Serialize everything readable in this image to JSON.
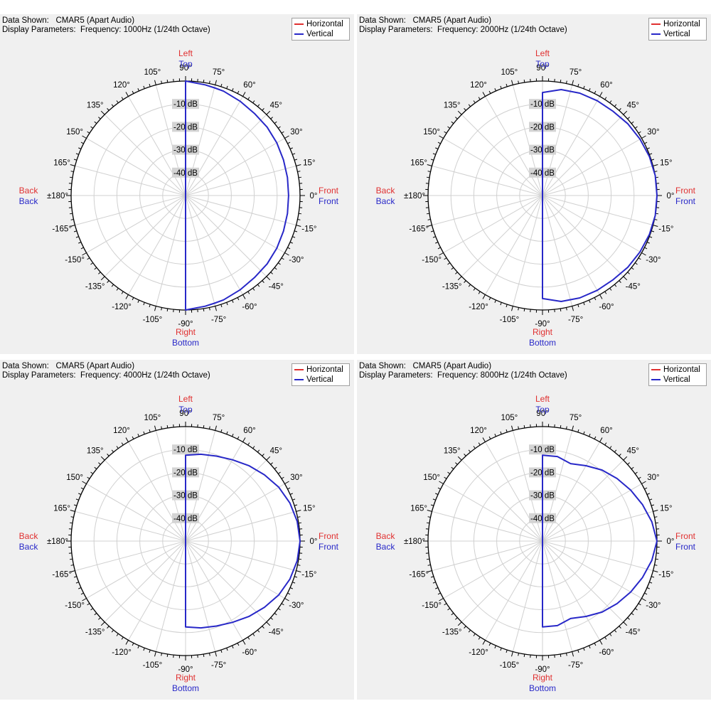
{
  "colors": {
    "horizontal": "#e03030",
    "vertical": "#2828c8",
    "grid": "#d0d0d0",
    "axis": "#000000"
  },
  "legend": {
    "horizontal": "Horizontal",
    "vertical": "Vertical"
  },
  "labels": {
    "data_shown_label": "Data Shown:",
    "display_params_label": "Display Parameters:",
    "left": "Left",
    "top": "Top",
    "right": "Right",
    "bottom": "Bottom",
    "back_h": "Back",
    "back_v": "Back",
    "front_h": "Front",
    "front_v": "Front"
  },
  "panels": [
    {
      "data_shown": "CMAR5 (Apart Audio)",
      "display_parameters": "Frequency: 1000Hz (1/24th Octave)"
    },
    {
      "data_shown": "CMAR5 (Apart Audio)",
      "display_parameters": "Frequency: 2000Hz (1/24th Octave)"
    },
    {
      "data_shown": "CMAR5 (Apart Audio)",
      "display_parameters": "Frequency: 4000Hz (1/24th Octave)"
    },
    {
      "data_shown": "CMAR5 (Apart Audio)",
      "display_parameters": "Frequency: 8000Hz (1/24th Octave)"
    }
  ],
  "chart_data": [
    {
      "type": "polar",
      "frequency": "1000Hz",
      "angle_labels": [
        "0°",
        "15°",
        "30°",
        "45°",
        "60°",
        "75°",
        "90°",
        "105°",
        "120°",
        "135°",
        "150°",
        "165°",
        "±180°",
        "-165°",
        "-150°",
        "-135°",
        "-120°",
        "-105°",
        "-90°",
        "-75°",
        "-60°",
        "-45°",
        "-30°",
        "-15°"
      ],
      "ring_labels": [
        "-10 dB",
        "-20 dB",
        "-30 dB",
        "-40 dB"
      ],
      "r_range_db": [
        -50,
        0
      ],
      "series": [
        {
          "name": "Horizontal",
          "theta": [],
          "db": []
        },
        {
          "name": "Vertical",
          "theta": [
            90,
            80,
            75,
            70,
            60,
            50,
            40,
            30,
            20,
            10,
            0,
            -10,
            -20,
            -30,
            -40,
            -50,
            -60,
            -70,
            -75,
            -80,
            -90
          ],
          "db": [
            0,
            -0.9,
            -1.3,
            -1.5,
            -2.4,
            -3.2,
            -3.5,
            -4.0,
            -4.5,
            -4.8,
            -5.0,
            -4.8,
            -4.5,
            -4.0,
            -3.5,
            -3.2,
            -2.4,
            -1.5,
            -1.3,
            -0.9,
            0
          ]
        }
      ]
    },
    {
      "type": "polar",
      "frequency": "2000Hz",
      "angle_labels": [
        "0°",
        "15°",
        "30°",
        "45°",
        "60°",
        "75°",
        "90°",
        "105°",
        "120°",
        "135°",
        "150°",
        "165°",
        "±180°",
        "-165°",
        "-150°",
        "-135°",
        "-120°",
        "-105°",
        "-90°",
        "-75°",
        "-60°",
        "-45°",
        "-30°",
        "-15°"
      ],
      "ring_labels": [
        "-10 dB",
        "-20 dB",
        "-30 dB",
        "-40 dB"
      ],
      "r_range_db": [
        -50,
        0
      ],
      "series": [
        {
          "name": "Horizontal",
          "theta": [],
          "db": []
        },
        {
          "name": "Vertical",
          "theta": [
            90,
            80,
            70,
            60,
            50,
            40,
            30,
            20,
            10,
            0,
            -10,
            -20,
            -30,
            -40,
            -50,
            -60,
            -70,
            -80,
            -90
          ],
          "db": [
            -5.0,
            -3.0,
            -2.4,
            -2.2,
            -2.0,
            -1.3,
            -0.8,
            -0.3,
            0,
            0,
            0,
            -0.3,
            -0.8,
            -1.3,
            -2.0,
            -2.2,
            -2.4,
            -3.0,
            -5.0
          ]
        }
      ]
    },
    {
      "type": "polar",
      "frequency": "4000Hz",
      "angle_labels": [
        "0°",
        "15°",
        "30°",
        "45°",
        "60°",
        "75°",
        "90°",
        "105°",
        "120°",
        "135°",
        "150°",
        "165°",
        "±180°",
        "-165°",
        "-150°",
        "-135°",
        "-120°",
        "-105°",
        "-90°",
        "-75°",
        "-60°",
        "-45°",
        "-30°",
        "-15°"
      ],
      "ring_labels": [
        "-10 dB",
        "-20 dB",
        "-30 dB",
        "-40 dB"
      ],
      "r_range_db": [
        -50,
        0
      ],
      "series": [
        {
          "name": "Horizontal",
          "theta": [],
          "db": []
        },
        {
          "name": "Vertical",
          "theta": [
            90,
            80,
            70,
            60,
            50,
            40,
            30,
            20,
            10,
            0,
            -10,
            -20,
            -30,
            -40,
            -50,
            -60,
            -70,
            -80,
            -90
          ],
          "db": [
            -12.5,
            -11.5,
            -10.5,
            -9.0,
            -7.0,
            -5.0,
            -3.0,
            -1.5,
            -0.5,
            0,
            -0.5,
            -1.5,
            -3.0,
            -5.0,
            -7.0,
            -9.0,
            -10.5,
            -11.5,
            -12.5
          ]
        }
      ]
    },
    {
      "type": "polar",
      "frequency": "8000Hz",
      "angle_labels": [
        "0°",
        "15°",
        "30°",
        "45°",
        "60°",
        "75°",
        "90°",
        "105°",
        "120°",
        "135°",
        "150°",
        "165°",
        "±180°",
        "-165°",
        "-150°",
        "-135°",
        "-120°",
        "-105°",
        "-90°",
        "-75°",
        "-60°",
        "-45°",
        "-30°",
        "-15°"
      ],
      "ring_labels": [
        "-10 dB",
        "-20 dB",
        "-30 dB",
        "-40 dB"
      ],
      "r_range_db": [
        -50,
        0
      ],
      "series": [
        {
          "name": "Horizontal",
          "theta": [],
          "db": []
        },
        {
          "name": "Vertical",
          "theta": [
            90,
            80,
            70,
            60,
            50,
            40,
            30,
            20,
            10,
            0,
            -10,
            -20,
            -30,
            -40,
            -50,
            -60,
            -70,
            -80,
            -90
          ],
          "db": [
            -12.5,
            -12.5,
            -14.0,
            -12.0,
            -9.5,
            -7.5,
            -5.5,
            -3.5,
            -1.5,
            0,
            -1.5,
            -3.5,
            -5.5,
            -7.5,
            -9.5,
            -12.0,
            -14.0,
            -12.5,
            -12.5
          ]
        }
      ]
    }
  ]
}
